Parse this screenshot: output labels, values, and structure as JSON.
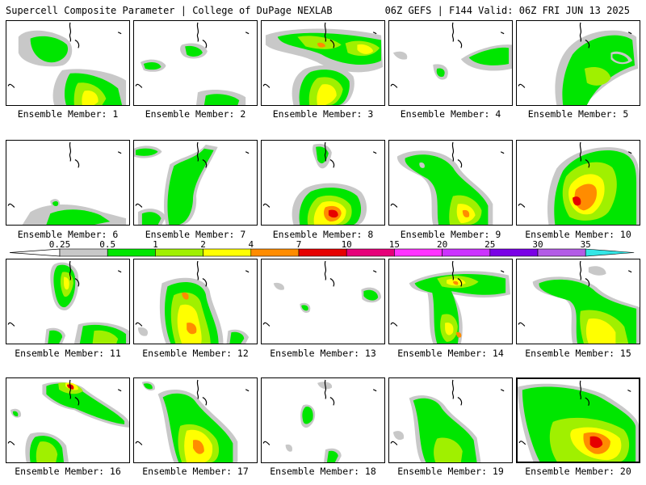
{
  "header": {
    "left": "Supercell Composite Parameter | College of DuPage NEXLAB",
    "right": "06Z GEFS | F144 Valid: 06Z FRI JUN 13 2025"
  },
  "colorbar": {
    "levels": [
      "0.25",
      "0.5",
      "1",
      "2",
      "4",
      "7",
      "10",
      "15",
      "20",
      "25",
      "30",
      "35"
    ],
    "colors": [
      "#c8c8c8",
      "#00e600",
      "#a0f000",
      "#ffff00",
      "#ff8c00",
      "#e60000",
      "#e6007a",
      "#ff33ff",
      "#cc33ff",
      "#7a00e6",
      "#b35ce6",
      "#33e6e6"
    ]
  },
  "members": [
    {
      "label": "Ensemble Member: 1",
      "selected": false
    },
    {
      "label": "Ensemble Member: 2",
      "selected": false
    },
    {
      "label": "Ensemble Member: 3",
      "selected": false
    },
    {
      "label": "Ensemble Member: 4",
      "selected": false
    },
    {
      "label": "Ensemble Member: 5",
      "selected": false
    },
    {
      "label": "Ensemble Member: 6",
      "selected": false
    },
    {
      "label": "Ensemble Member: 7",
      "selected": false
    },
    {
      "label": "Ensemble Member: 8",
      "selected": false
    },
    {
      "label": "Ensemble Member: 9",
      "selected": false
    },
    {
      "label": "Ensemble Member: 10",
      "selected": false
    },
    {
      "label": "Ensemble Member: 11",
      "selected": false
    },
    {
      "label": "Ensemble Member: 12",
      "selected": false
    },
    {
      "label": "Ensemble Member: 13",
      "selected": false
    },
    {
      "label": "Ensemble Member: 14",
      "selected": false
    },
    {
      "label": "Ensemble Member: 15",
      "selected": false
    },
    {
      "label": "Ensemble Member: 16",
      "selected": false
    },
    {
      "label": "Ensemble Member: 17",
      "selected": false
    },
    {
      "label": "Ensemble Member: 18",
      "selected": false
    },
    {
      "label": "Ensemble Member: 19",
      "selected": false
    },
    {
      "label": "Ensemble Member: 20",
      "selected": true
    }
  ]
}
